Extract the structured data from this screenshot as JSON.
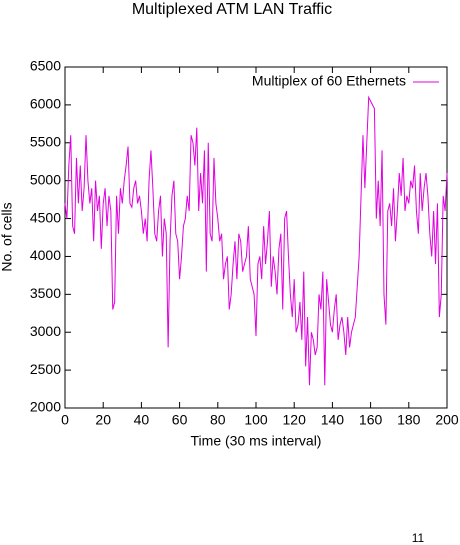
{
  "chart_data": {
    "type": "line",
    "title": "Multiplexed ATM  LAN Traffic",
    "x_label": "Time (30 ms interval)",
    "y_label": "No. of cells",
    "footer": "11",
    "legend": "top-right",
    "xlim": [
      0,
      200
    ],
    "xticks": [
      0,
      20,
      40,
      60,
      80,
      100,
      120,
      140,
      160,
      180,
      200
    ],
    "ylim": [
      2000,
      6500
    ],
    "yticks": [
      2000,
      2500,
      3000,
      3500,
      4000,
      4500,
      5000,
      5500,
      6000,
      6500
    ],
    "x": [
      0,
      1,
      2,
      3,
      4,
      5,
      6,
      7,
      8,
      9,
      10,
      11,
      12,
      13,
      14,
      15,
      16,
      17,
      18,
      19,
      20,
      21,
      22,
      23,
      24,
      25,
      26,
      27,
      28,
      29,
      30,
      31,
      32,
      33,
      34,
      35,
      36,
      37,
      38,
      39,
      40,
      41,
      42,
      43,
      44,
      45,
      46,
      47,
      48,
      49,
      50,
      51,
      52,
      53,
      54,
      55,
      56,
      57,
      58,
      59,
      60,
      61,
      62,
      63,
      64,
      65,
      66,
      67,
      68,
      69,
      70,
      71,
      72,
      73,
      74,
      75,
      76,
      77,
      78,
      79,
      80,
      81,
      82,
      83,
      84,
      85,
      86,
      87,
      88,
      89,
      90,
      91,
      92,
      93,
      94,
      95,
      96,
      97,
      98,
      99,
      100,
      101,
      102,
      103,
      104,
      105,
      106,
      107,
      108,
      109,
      110,
      111,
      112,
      113,
      114,
      115,
      116,
      117,
      118,
      119,
      120,
      121,
      122,
      123,
      124,
      125,
      126,
      127,
      128,
      129,
      130,
      131,
      132,
      133,
      134,
      135,
      136,
      137,
      138,
      139,
      140,
      141,
      142,
      143,
      144,
      145,
      146,
      147,
      148,
      149,
      150,
      151,
      152,
      153,
      154,
      155,
      156,
      157,
      158,
      159,
      160,
      161,
      162,
      163,
      164,
      165,
      166,
      167,
      168,
      169,
      170,
      171,
      172,
      173,
      174,
      175,
      176,
      177,
      178,
      179,
      180,
      181,
      182,
      183,
      184,
      185,
      186,
      187,
      188,
      189,
      190,
      191,
      192,
      193,
      194,
      195,
      196,
      197,
      198,
      199,
      200
    ],
    "series": [
      {
        "name": "Multiplex of 60 Ethernets",
        "color": "#e000e0",
        "values": [
          4700,
          4500,
          5200,
          5600,
          4400,
          4300,
          5300,
          4700,
          5200,
          4600,
          4900,
          5600,
          5000,
          4700,
          4900,
          4200,
          5000,
          4600,
          4800,
          4100,
          4700,
          4900,
          4400,
          4800,
          4600,
          3300,
          3400,
          4800,
          4300,
          4900,
          4700,
          5000,
          5200,
          5450,
          4700,
          4650,
          4900,
          5000,
          4700,
          4800,
          4600,
          4300,
          4500,
          4200,
          5000,
          5400,
          4900,
          4300,
          4200,
          4600,
          4800,
          4000,
          4500,
          4300,
          2800,
          4200,
          4800,
          5000,
          4300,
          4200,
          3700,
          4000,
          4400,
          4500,
          4800,
          4600,
          5600,
          5500,
          5200,
          5700,
          4600,
          5100,
          4700,
          5400,
          3800,
          5500,
          4300,
          4200,
          5300,
          4700,
          4500,
          4200,
          4300,
          3700,
          3900,
          4000,
          3300,
          3500,
          3900,
          4200,
          3700,
          4300,
          4200,
          3800,
          3900,
          4000,
          4400,
          3700,
          3600,
          3500,
          2950,
          3900,
          4000,
          3700,
          4400,
          3900,
          4200,
          4600,
          3600,
          4000,
          3800,
          3500,
          4100,
          4300,
          3300,
          4500,
          4600,
          4000,
          3500,
          3200,
          3700,
          3000,
          3100,
          3400,
          2900,
          3800,
          2550,
          3200,
          2300,
          3000,
          2900,
          2700,
          2800,
          3500,
          3300,
          3800,
          2300,
          3700,
          3400,
          3100,
          3000,
          3300,
          3500,
          2900,
          3100,
          3200,
          3000,
          2700,
          3200,
          2800,
          3000,
          3100,
          3200,
          3600,
          4000,
          4800,
          5600,
          4900,
          5500,
          6100,
          6050,
          6000,
          5950,
          4500,
          5000,
          4400,
          5400,
          3500,
          3100,
          4600,
          4700,
          4400,
          4900,
          4200,
          4600,
          5100,
          4800,
          5300,
          4600,
          4800,
          4700,
          5000,
          4900,
          5200,
          4600,
          4300,
          5100,
          4600,
          4900,
          5100,
          4800,
          4300,
          4000,
          4600,
          3900,
          4700,
          3200,
          3500,
          4800,
          4600,
          5100
        ]
      }
    ]
  }
}
